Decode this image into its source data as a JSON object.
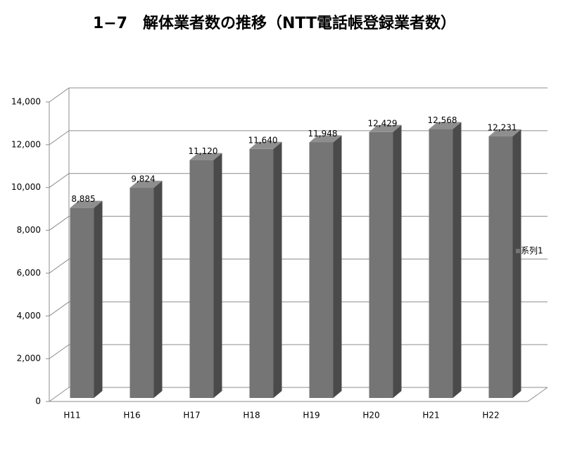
{
  "chart_data": {
    "type": "bar3d",
    "title": "1−7　解体業者数の推移（NTT電話帳登録業者数）",
    "categories": [
      "H11",
      "H16",
      "H17",
      "H18",
      "H19",
      "H20",
      "H21",
      "H22"
    ],
    "series": [
      {
        "name": "系列1",
        "color": "#757575",
        "values": [
          8885,
          9824,
          11120,
          11640,
          11948,
          12429,
          12568,
          12231
        ],
        "value_labels": [
          "8,885",
          "9,824",
          "11,120",
          "11,640",
          "11,948",
          "12,429",
          "12,568",
          "12,231"
        ]
      }
    ],
    "ylim": [
      0,
      14000
    ],
    "yticks": [
      0,
      {
        "value": 2000,
        "label": "2,000"
      },
      {
        "value": 4000,
        "label": "4,000"
      },
      {
        "value": 6000,
        "label": "6,000"
      },
      {
        "value": 8000,
        "label": "8,000"
      },
      {
        "value": 10000,
        "label": "10,000"
      },
      {
        "value": 12000,
        "label": "12,000"
      },
      {
        "value": 14000,
        "label": "14,000"
      }
    ],
    "grid": true,
    "legend": "right"
  }
}
